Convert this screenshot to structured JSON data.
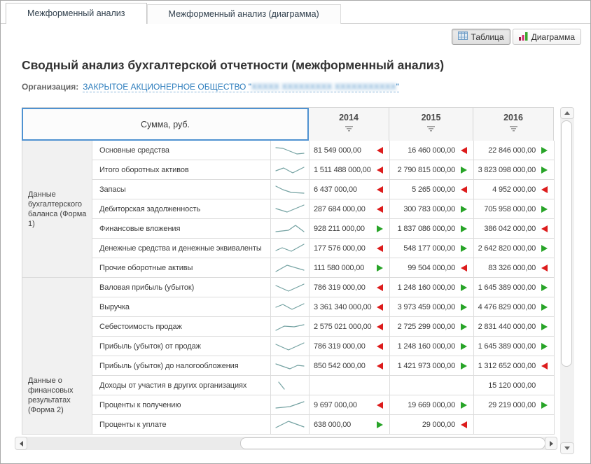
{
  "tabs": [
    {
      "label": "Межформенный анализ",
      "active": true
    },
    {
      "label": "Межформенный анализ (диаграмма)",
      "active": false
    }
  ],
  "view_toggle": {
    "table_label": "Таблица",
    "chart_label": "Диаграмма"
  },
  "page": {
    "title": "Сводный анализ бухгалтерской отчетности (межформенный анализ)",
    "org_label": "Организация:",
    "org_link_prefix": "ЗАКРЫТОЕ АКЦИОНЕРНОЕ ОБЩЕСТВО \"",
    "org_link_masked_placeholder": "XXXXX XXXXXXXXX XXXXXXXXXXX",
    "org_link_suffix": "\""
  },
  "colors": {
    "accent_blue": "#4f92d1",
    "trend_up_green": "#28a428",
    "trend_down_red": "#dd1c1c",
    "sparkline": "#74a2a2",
    "link_blue": "#2d7dbd"
  },
  "table": {
    "corner_header": "Сумма, руб.",
    "years": [
      "2014",
      "2015",
      "2016"
    ],
    "groups": [
      {
        "label": "Данные бухгалтерского баланса (Форма 1)",
        "rows": [
          {
            "label": "Основные средства",
            "spark": [
              [
                2,
                5
              ],
              [
                12,
                6
              ],
              [
                22,
                10
              ],
              [
                32,
                14
              ],
              [
                42,
                13
              ]
            ],
            "values": [
              {
                "text": "81 549 000,00",
                "trend": "down"
              },
              {
                "text": "16 460 000,00",
                "trend": "down"
              },
              {
                "text": "22 846 000,00",
                "trend": "up"
              }
            ]
          },
          {
            "label": "Итого оборотных активов",
            "spark": [
              [
                2,
                10
              ],
              [
                13,
                6
              ],
              [
                26,
                13
              ],
              [
                42,
                5
              ]
            ],
            "values": [
              {
                "text": "1 511 488 000,00",
                "trend": "down"
              },
              {
                "text": "2 790 815 000,00",
                "trend": "up"
              },
              {
                "text": "3 823 098 000,00",
                "trend": "up"
              }
            ]
          },
          {
            "label": "Запасы",
            "spark": [
              [
                2,
                4
              ],
              [
                12,
                9
              ],
              [
                24,
                13
              ],
              [
                42,
                14
              ]
            ],
            "values": [
              {
                "text": "6 437 000,00",
                "trend": "down"
              },
              {
                "text": "5 265 000,00",
                "trend": "down"
              },
              {
                "text": "4 952 000,00",
                "trend": "down"
              }
            ]
          },
          {
            "label": "Дебиторская задолженность",
            "spark": [
              [
                2,
                8
              ],
              [
                18,
                13
              ],
              [
                42,
                3
              ]
            ],
            "values": [
              {
                "text": "287 684 000,00",
                "trend": "down"
              },
              {
                "text": "300 783 000,00",
                "trend": "up"
              },
              {
                "text": "705 958 000,00",
                "trend": "up"
              }
            ]
          },
          {
            "label": "Финансовые вложения",
            "spark": [
              [
                2,
                13
              ],
              [
                20,
                11
              ],
              [
                30,
                4
              ],
              [
                42,
                13
              ]
            ],
            "values": [
              {
                "text": "928 211 000,00",
                "trend": "up"
              },
              {
                "text": "1 837 086 000,00",
                "trend": "up"
              },
              {
                "text": "386 042 000,00",
                "trend": "down"
              }
            ]
          },
          {
            "label": "Денежные средства и денежные эквиваленты",
            "spark": [
              [
                2,
                12
              ],
              [
                11,
                8
              ],
              [
                24,
                13
              ],
              [
                42,
                3
              ]
            ],
            "values": [
              {
                "text": "177 576 000,00",
                "trend": "down"
              },
              {
                "text": "548 177 000,00",
                "trend": "up"
              },
              {
                "text": "2 642 820 000,00",
                "trend": "up"
              }
            ]
          },
          {
            "label": "Прочие оборотные активы",
            "spark": [
              [
                2,
                14
              ],
              [
                18,
                5
              ],
              [
                42,
                12
              ]
            ],
            "values": [
              {
                "text": "111 580 000,00",
                "trend": "up"
              },
              {
                "text": "99 504 000,00",
                "trend": "down"
              },
              {
                "text": "83 326 000,00",
                "trend": "down"
              }
            ]
          }
        ]
      },
      {
        "label": "Данные о финансовых результатах (Форма 2)",
        "rows": [
          {
            "label": "Валовая прибыль (убыток)",
            "spark": [
              [
                2,
                6
              ],
              [
                20,
                14
              ],
              [
                42,
                4
              ]
            ],
            "values": [
              {
                "text": "786 319 000,00",
                "trend": "down"
              },
              {
                "text": "1 248 160 000,00",
                "trend": "up"
              },
              {
                "text": "1 645 389 000,00",
                "trend": "up"
              }
            ]
          },
          {
            "label": "Выручка",
            "spark": [
              [
                2,
                9
              ],
              [
                12,
                5
              ],
              [
                25,
                12
              ],
              [
                42,
                4
              ]
            ],
            "values": [
              {
                "text": "3 361 340 000,00",
                "trend": "down"
              },
              {
                "text": "3 973 459 000,00",
                "trend": "up"
              },
              {
                "text": "4 476 829 000,00",
                "trend": "up"
              }
            ]
          },
          {
            "label": "Себестоимость продаж",
            "spark": [
              [
                2,
                14
              ],
              [
                14,
                8
              ],
              [
                28,
                9
              ],
              [
                42,
                6
              ]
            ],
            "values": [
              {
                "text": "2 575 021 000,00",
                "trend": "down"
              },
              {
                "text": "2 725 299 000,00",
                "trend": "up"
              },
              {
                "text": "2 831 440 000,00",
                "trend": "up"
              }
            ]
          },
          {
            "label": "Прибыль (убыток) от продаж",
            "spark": [
              [
                2,
                6
              ],
              [
                20,
                14
              ],
              [
                42,
                4
              ]
            ],
            "values": [
              {
                "text": "786 319 000,00",
                "trend": "down"
              },
              {
                "text": "1 248 160 000,00",
                "trend": "up"
              },
              {
                "text": "1 645 389 000,00",
                "trend": "up"
              }
            ]
          },
          {
            "label": "Прибыль (убыток) до налогообложения",
            "spark": [
              [
                2,
                6
              ],
              [
                22,
                13
              ],
              [
                33,
                8
              ],
              [
                42,
                9
              ]
            ],
            "values": [
              {
                "text": "850 542 000,00",
                "trend": "down"
              },
              {
                "text": "1 421 973 000,00",
                "trend": "up"
              },
              {
                "text": "1 312 652 000,00",
                "trend": "down"
              }
            ]
          },
          {
            "label": "Доходы от участия в других организациях",
            "spark": [
              [
                6,
                4
              ],
              [
                14,
                14
              ]
            ],
            "values": [
              {
                "text": "",
                "trend": "none"
              },
              {
                "text": "",
                "trend": "none"
              },
              {
                "text": "15 120 000,00",
                "trend": "none"
              }
            ]
          },
          {
            "label": "Проценты к получению",
            "spark": [
              [
                2,
                13
              ],
              [
                22,
                11
              ],
              [
                42,
                4
              ]
            ],
            "values": [
              {
                "text": "9 697 000,00",
                "trend": "down"
              },
              {
                "text": "19 669 000,00",
                "trend": "up"
              },
              {
                "text": "29 219 000,00",
                "trend": "up"
              }
            ]
          },
          {
            "label": "Проценты к уплате",
            "spark": [
              [
                2,
                13
              ],
              [
                20,
                4
              ],
              [
                42,
                12
              ]
            ],
            "values": [
              {
                "text": "638 000,00",
                "trend": "up"
              },
              {
                "text": "29 000,00",
                "trend": "down"
              },
              {
                "text": "",
                "trend": "none"
              }
            ]
          }
        ]
      }
    ]
  }
}
